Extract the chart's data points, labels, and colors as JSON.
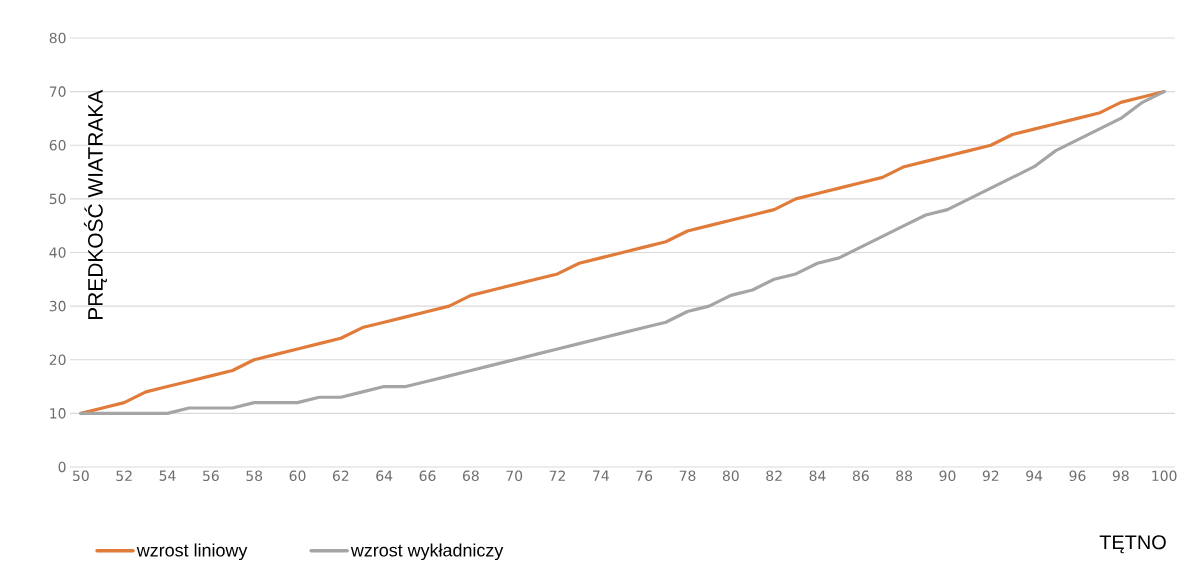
{
  "chart_data": {
    "type": "line",
    "xlabel": "TĘTNO",
    "ylabel": "PRĘDKOŚĆ WIATRAKA",
    "x": [
      50,
      51,
      52,
      53,
      54,
      55,
      56,
      57,
      58,
      59,
      60,
      61,
      62,
      63,
      64,
      65,
      66,
      67,
      68,
      69,
      70,
      71,
      72,
      73,
      74,
      75,
      76,
      77,
      78,
      79,
      80,
      81,
      82,
      83,
      84,
      85,
      86,
      87,
      88,
      89,
      90,
      91,
      92,
      93,
      94,
      95,
      96,
      97,
      98,
      99,
      100
    ],
    "series": [
      {
        "name": "wzrost liniowy",
        "color": "#e07b39",
        "values": [
          10,
          11,
          12,
          14,
          15,
          16,
          17,
          18,
          20,
          21,
          22,
          23,
          24,
          26,
          27,
          28,
          29,
          30,
          32,
          33,
          34,
          35,
          36,
          38,
          39,
          40,
          41,
          42,
          44,
          45,
          46,
          47,
          48,
          50,
          51,
          52,
          53,
          54,
          56,
          57,
          58,
          59,
          60,
          62,
          63,
          64,
          65,
          66,
          68,
          69,
          70
        ]
      },
      {
        "name": "wzrost wykładniczy",
        "color": "#a5a5a5",
        "values": [
          10,
          10,
          10,
          10,
          10,
          11,
          11,
          11,
          12,
          12,
          12,
          13,
          13,
          14,
          15,
          15,
          16,
          17,
          18,
          19,
          20,
          21,
          22,
          23,
          24,
          25,
          26,
          27,
          29,
          30,
          32,
          33,
          35,
          36,
          38,
          39,
          41,
          43,
          45,
          47,
          48,
          50,
          52,
          54,
          56,
          59,
          61,
          63,
          65,
          68,
          70
        ]
      }
    ],
    "xlim": [
      49.5,
      100.5
    ],
    "xticks": [
      50,
      52,
      54,
      56,
      58,
      60,
      62,
      64,
      66,
      68,
      70,
      72,
      74,
      76,
      78,
      80,
      82,
      84,
      86,
      88,
      90,
      92,
      94,
      96,
      98,
      100
    ],
    "ylim": [
      0,
      80
    ],
    "yticks": [
      0,
      10,
      20,
      30,
      40,
      50,
      60,
      70,
      80
    ],
    "grid": "y",
    "legend": "bottom",
    "marker": "none",
    "line_style": "solid"
  }
}
